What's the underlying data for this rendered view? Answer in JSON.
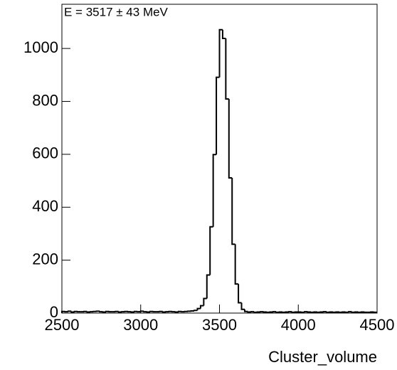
{
  "chart_data": {
    "type": "histogram",
    "title": "E = 3517 ± 43 MeV",
    "x_label": "Cluster_volume",
    "color": "#000000",
    "bins": [
      2500,
      2520,
      2540,
      2560,
      2580,
      2600,
      2620,
      2640,
      2660,
      2680,
      2700,
      2720,
      2740,
      2760,
      2780,
      2800,
      2820,
      2840,
      2860,
      2880,
      2900,
      2920,
      2940,
      2960,
      2980,
      3000,
      3020,
      3040,
      3060,
      3080,
      3100,
      3120,
      3140,
      3160,
      3180,
      3200,
      3220,
      3240,
      3260,
      3280,
      3300,
      3320,
      3340,
      3360,
      3380,
      3400,
      3420,
      3440,
      3460,
      3480,
      3500,
      3520,
      3540,
      3560,
      3580,
      3600,
      3620,
      3640,
      3660,
      3680,
      3700,
      3720,
      3740,
      3760,
      3780,
      3800,
      3820,
      3840,
      3860,
      3880,
      3900,
      3920,
      3940,
      3960,
      3980,
      4000,
      4020,
      4040,
      4060,
      4080,
      4100,
      4120,
      4140,
      4160,
      4180,
      4200,
      4220,
      4240,
      4260,
      4280,
      4300,
      4320,
      4340,
      4360,
      4380,
      4400,
      4420,
      4440,
      4460,
      4480,
      4500
    ],
    "values": [
      6,
      5,
      7,
      4,
      6,
      5,
      5,
      6,
      4,
      5,
      6,
      7,
      5,
      4,
      6,
      5,
      5,
      6,
      4,
      5,
      6,
      5,
      4,
      6,
      5,
      7,
      5,
      4,
      6,
      5,
      5,
      6,
      4,
      5,
      6,
      5,
      4,
      6,
      5,
      6,
      7,
      8,
      10,
      17,
      28,
      55,
      144,
      326,
      599,
      891,
      1071,
      1038,
      809,
      511,
      260,
      110,
      39,
      14,
      6,
      4,
      5,
      3,
      4,
      5,
      4,
      3,
      4,
      5,
      3,
      4,
      3,
      4,
      5,
      3,
      4,
      4,
      3,
      5,
      4,
      3,
      4,
      3,
      4,
      5,
      3,
      4,
      3,
      4,
      3,
      4,
      3,
      5,
      3,
      4,
      3,
      4,
      3,
      3,
      4,
      3
    ],
    "xlim": [
      2500,
      4500
    ],
    "xticks": [
      2500,
      3000,
      3500,
      4000,
      4500
    ],
    "ylim": [
      0,
      1167
    ],
    "yticks": [
      0,
      200,
      400,
      600,
      800,
      1000
    ]
  }
}
